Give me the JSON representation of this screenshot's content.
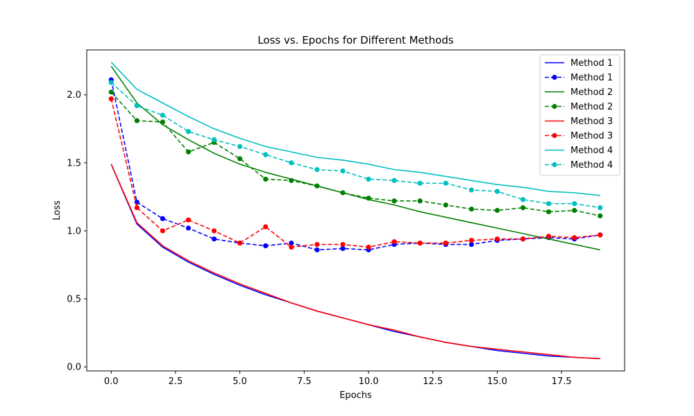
{
  "chart_data": {
    "type": "line",
    "title": "Loss vs. Epochs for Different Methods",
    "xlabel": "Epochs",
    "ylabel": "Loss",
    "xlim": [
      -0.95,
      19.95
    ],
    "ylim": [
      -0.03,
      2.33
    ],
    "xticks": [
      0.0,
      2.5,
      5.0,
      7.5,
      10.0,
      12.5,
      15.0,
      17.5
    ],
    "xtick_labels": [
      "0.0",
      "2.5",
      "5.0",
      "7.5",
      "10.0",
      "12.5",
      "15.0",
      "17.5"
    ],
    "yticks": [
      0.0,
      0.5,
      1.0,
      1.5,
      2.0
    ],
    "ytick_labels": [
      "0.0",
      "0.5",
      "1.0",
      "1.5",
      "2.0"
    ],
    "grid": false,
    "legend_position": "top-right",
    "x": [
      0,
      1,
      2,
      3,
      4,
      5,
      6,
      7,
      8,
      9,
      10,
      11,
      12,
      13,
      14,
      15,
      16,
      17,
      18,
      19
    ],
    "series": [
      {
        "name": "Method 1",
        "color": "#0000ff",
        "style": "solid",
        "marker": false,
        "values": [
          1.49,
          1.05,
          0.88,
          0.77,
          0.68,
          0.6,
          0.53,
          0.47,
          0.41,
          0.36,
          0.31,
          0.26,
          0.22,
          0.18,
          0.15,
          0.12,
          0.1,
          0.08,
          0.07,
          0.06
        ]
      },
      {
        "name": "Method 1",
        "color": "#0000ff",
        "style": "dashed",
        "marker": true,
        "values": [
          2.11,
          1.21,
          1.09,
          1.02,
          0.94,
          0.91,
          0.89,
          0.91,
          0.86,
          0.87,
          0.86,
          0.9,
          0.91,
          0.9,
          0.9,
          0.93,
          0.94,
          0.95,
          0.94,
          0.97
        ]
      },
      {
        "name": "Method 2",
        "color": "#008000",
        "style": "solid",
        "marker": false,
        "values": [
          2.21,
          1.94,
          1.78,
          1.67,
          1.57,
          1.49,
          1.43,
          1.38,
          1.33,
          1.28,
          1.23,
          1.19,
          1.14,
          1.1,
          1.06,
          1.02,
          0.98,
          0.94,
          0.9,
          0.86
        ]
      },
      {
        "name": "Method 2",
        "color": "#008000",
        "style": "dashed",
        "marker": true,
        "values": [
          2.02,
          1.81,
          1.8,
          1.58,
          1.65,
          1.53,
          1.38,
          1.37,
          1.33,
          1.28,
          1.24,
          1.22,
          1.22,
          1.19,
          1.16,
          1.15,
          1.17,
          1.14,
          1.15,
          1.11
        ]
      },
      {
        "name": "Method 3",
        "color": "#ff0000",
        "style": "solid",
        "marker": false,
        "values": [
          1.49,
          1.06,
          0.89,
          0.78,
          0.69,
          0.61,
          0.54,
          0.47,
          0.41,
          0.36,
          0.31,
          0.27,
          0.22,
          0.18,
          0.15,
          0.13,
          0.11,
          0.09,
          0.07,
          0.06
        ]
      },
      {
        "name": "Method 3",
        "color": "#ff0000",
        "style": "dashed",
        "marker": true,
        "values": [
          1.97,
          1.17,
          1.0,
          1.08,
          1.0,
          0.91,
          1.03,
          0.88,
          0.9,
          0.9,
          0.88,
          0.92,
          0.91,
          0.91,
          0.93,
          0.94,
          0.94,
          0.96,
          0.95,
          0.97
        ]
      },
      {
        "name": "Method 4",
        "color": "#00bfbf",
        "style": "solid",
        "marker": false,
        "values": [
          2.24,
          2.04,
          1.94,
          1.84,
          1.75,
          1.68,
          1.62,
          1.58,
          1.54,
          1.52,
          1.49,
          1.45,
          1.43,
          1.4,
          1.37,
          1.34,
          1.32,
          1.29,
          1.28,
          1.26
        ]
      },
      {
        "name": "Method 4",
        "color": "#00bfbf",
        "style": "dashed",
        "marker": true,
        "values": [
          2.09,
          1.92,
          1.85,
          1.73,
          1.67,
          1.62,
          1.56,
          1.5,
          1.45,
          1.44,
          1.38,
          1.37,
          1.35,
          1.35,
          1.3,
          1.29,
          1.23,
          1.2,
          1.2,
          1.17
        ]
      }
    ]
  }
}
